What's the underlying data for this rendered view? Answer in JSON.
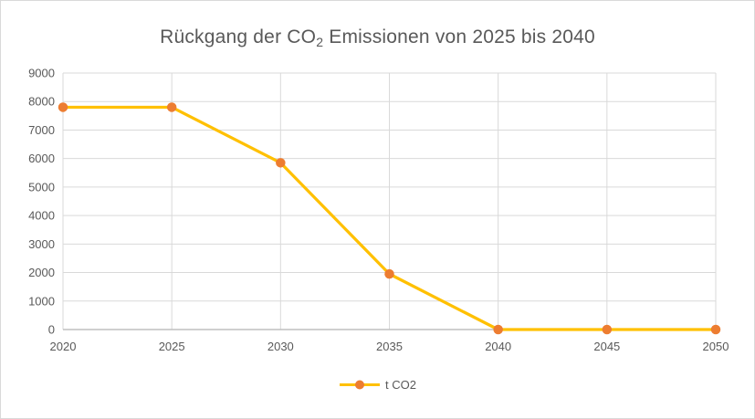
{
  "title": {
    "prefix": "Rückgang der CO",
    "subscript": "2",
    "suffix": " Emissionen von 2025 bis 2040"
  },
  "legend": {
    "label": "t CO2"
  },
  "colors": {
    "line": "#FFC000",
    "marker": "#ED7D31",
    "gridline": "#D9D9D9",
    "axis_line": "#BFBFBF",
    "text": "#595959",
    "border": "#D9D9D9"
  },
  "chart_data": {
    "type": "line",
    "title": "Rückgang der CO2 Emissionen von 2025 bis 2040",
    "categories": [
      "2020",
      "2025",
      "2030",
      "2035",
      "2040",
      "2045",
      "2050"
    ],
    "series": [
      {
        "name": "t CO2",
        "values": [
          7800,
          7800,
          5850,
          1950,
          0,
          0,
          0
        ]
      }
    ],
    "xlabel": "",
    "ylabel": "",
    "ylim": [
      0,
      9000
    ],
    "y_ticks": [
      0,
      1000,
      2000,
      3000,
      4000,
      5000,
      6000,
      7000,
      8000,
      9000
    ],
    "grid": true,
    "legend_position": "bottom"
  }
}
